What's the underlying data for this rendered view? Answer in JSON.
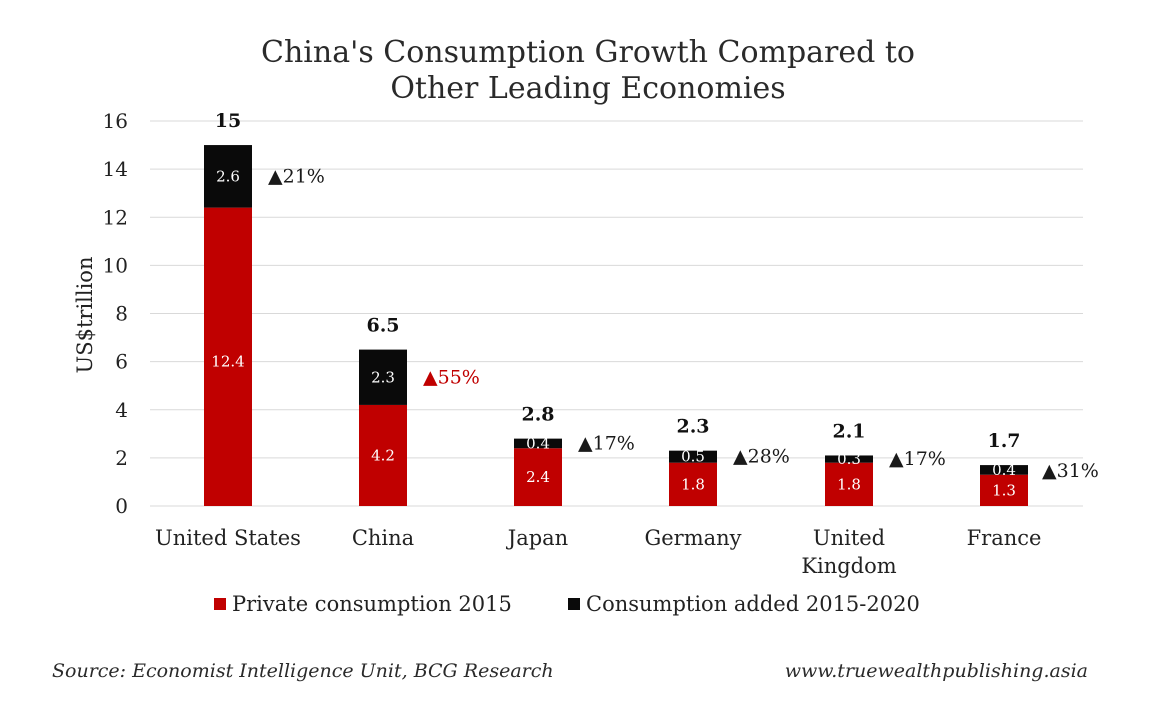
{
  "colors": {
    "private": "#c00000",
    "added": "#0a0a0a",
    "growth_highlight": "#c00000",
    "growth_default": "#1a1a1a"
  },
  "chart_data": {
    "type": "bar",
    "stacked": true,
    "title": [
      "China's Consumption Growth Compared to",
      "Other Leading Economies"
    ],
    "xlabel": "",
    "ylabel": "US$trillion",
    "ylim": [
      0,
      16
    ],
    "yticks": [
      0,
      2,
      4,
      6,
      8,
      10,
      12,
      14,
      16
    ],
    "grid": true,
    "legend_position": "bottom",
    "categories": [
      [
        "United States"
      ],
      [
        "China"
      ],
      [
        "Japan"
      ],
      [
        "Germany"
      ],
      [
        "United",
        "Kingdom"
      ],
      [
        "France"
      ]
    ],
    "series": [
      {
        "name": "Private consumption 2015",
        "values": [
          12.4,
          4.2,
          2.4,
          1.8,
          1.8,
          1.3
        ],
        "labels": [
          "12.4",
          "4.2",
          "2.4",
          "1.8",
          "1.8",
          "1.3"
        ]
      },
      {
        "name": "Consumption added 2015-2020",
        "values": [
          2.6,
          2.3,
          0.4,
          0.5,
          0.3,
          0.4
        ],
        "labels": [
          "2.6",
          "2.3",
          "0.4",
          "0.5",
          "0.3",
          "0.4"
        ]
      }
    ],
    "totals": [
      "15",
      "6.5",
      "2.8",
      "2.3",
      "2.1",
      "1.7"
    ],
    "growth": [
      {
        "text": "▲21%",
        "highlight": false
      },
      {
        "text": "▲55%",
        "highlight": true
      },
      {
        "text": "▲17%",
        "highlight": false
      },
      {
        "text": "▲28%",
        "highlight": false
      },
      {
        "text": "▲17%",
        "highlight": false
      },
      {
        "text": "▲31%",
        "highlight": false
      }
    ]
  },
  "footer": {
    "source": "Source: Economist Intelligence Unit, BCG Research",
    "website": "www.truewealthpublishing.asia"
  }
}
